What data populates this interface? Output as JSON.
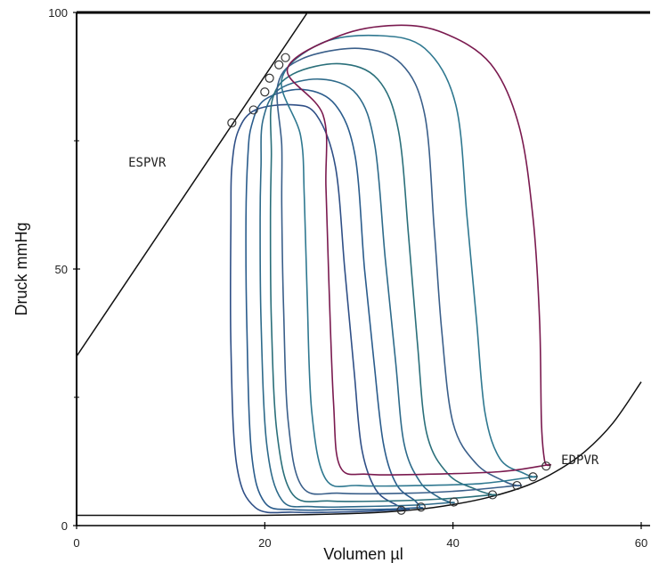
{
  "chart_data": {
    "type": "line",
    "xlabel": "Volumen µl",
    "ylabel": "Druck mmHg",
    "xlim": [
      0,
      60
    ],
    "ylim": [
      0,
      100
    ],
    "xticks": [
      {
        "v": 0,
        "label": "0"
      },
      {
        "v": 20,
        "label": "20"
      },
      {
        "v": 40,
        "label": "40"
      },
      {
        "v": 60,
        "label": "60"
      }
    ],
    "yticks": [
      {
        "v": 0,
        "label": "0"
      },
      {
        "v": 50,
        "label": "50"
      },
      {
        "v": 100,
        "label": "100"
      }
    ],
    "minor_yticks": [
      25,
      75
    ],
    "colors": {
      "axis": "#000000",
      "line": "#111111",
      "loops": [
        "#2f4f86",
        "#2a5c8c",
        "#2d6a8a",
        "#2a6f7a",
        "#3a5f8a",
        "#2f7890",
        "#7a1a4f"
      ],
      "marker": "#333333"
    },
    "annotations": [
      {
        "text": "ESPVR",
        "x": 5.5,
        "y": 70
      },
      {
        "text": "EDPVR",
        "x": 51.5,
        "y": 12
      }
    ],
    "espvr": {
      "x": [
        0,
        26
      ],
      "y": [
        33,
        104
      ]
    },
    "edpvr": {
      "x": [
        0,
        20,
        30,
        36,
        40,
        44,
        48,
        51,
        54,
        57,
        60
      ],
      "y": [
        2,
        2,
        2.4,
        3.1,
        4.1,
        5.6,
        7.9,
        10.6,
        14.4,
        20,
        28
      ]
    },
    "series": [
      {
        "points": [
          [
            35,
            3.2
          ],
          [
            31,
            2.8
          ],
          [
            27,
            2.6
          ],
          [
            23,
            2.6
          ],
          [
            19,
            3.5
          ],
          [
            17,
            12
          ],
          [
            16.4,
            35
          ],
          [
            16.4,
            60
          ],
          [
            16.5,
            70
          ],
          [
            17.2,
            77
          ],
          [
            19,
            81
          ],
          [
            23,
            82
          ],
          [
            25.5,
            80
          ],
          [
            27.5,
            70
          ],
          [
            28.5,
            50
          ],
          [
            29.5,
            30
          ],
          [
            30.3,
            15
          ],
          [
            31.8,
            7
          ],
          [
            34,
            4
          ],
          [
            35,
            3.2
          ]
        ]
      },
      {
        "points": [
          [
            36.5,
            3.5
          ],
          [
            33,
            3.2
          ],
          [
            28,
            3.1
          ],
          [
            23,
            3.1
          ],
          [
            20,
            4.5
          ],
          [
            18.6,
            14
          ],
          [
            18.1,
            38
          ],
          [
            18,
            60
          ],
          [
            18.2,
            72
          ],
          [
            18.6,
            78
          ],
          [
            20,
            83
          ],
          [
            24,
            85
          ],
          [
            27.5,
            82
          ],
          [
            29.6,
            72
          ],
          [
            30.6,
            50
          ],
          [
            31.6,
            32
          ],
          [
            32.6,
            16
          ],
          [
            34,
            8
          ],
          [
            36,
            4.8
          ],
          [
            36.5,
            3.5
          ]
        ]
      },
      {
        "points": [
          [
            39.8,
            4.5
          ],
          [
            36,
            4.0
          ],
          [
            30,
            3.7
          ],
          [
            25,
            3.7
          ],
          [
            21.8,
            5
          ],
          [
            20.2,
            16
          ],
          [
            19.6,
            40
          ],
          [
            19.5,
            60
          ],
          [
            19.6,
            70
          ],
          [
            19.8,
            79
          ],
          [
            21.5,
            85
          ],
          [
            26,
            87
          ],
          [
            29.8,
            84
          ],
          [
            31.7,
            74
          ],
          [
            32.8,
            52
          ],
          [
            33.9,
            32
          ],
          [
            34.8,
            16
          ],
          [
            36.5,
            8.5
          ],
          [
            38.5,
            5.5
          ],
          [
            39.8,
            4.5
          ]
        ]
      },
      {
        "points": [
          [
            44.2,
            6.0
          ],
          [
            39,
            5.2
          ],
          [
            33,
            4.8
          ],
          [
            27,
            4.8
          ],
          [
            23,
            6
          ],
          [
            21.3,
            18
          ],
          [
            20.7,
            40
          ],
          [
            20.6,
            60
          ],
          [
            20.7,
            72
          ],
          [
            20.8,
            83
          ],
          [
            23,
            88
          ],
          [
            28,
            90
          ],
          [
            32,
            87
          ],
          [
            34.2,
            77
          ],
          [
            35.3,
            56
          ],
          [
            36.2,
            36
          ],
          [
            37.2,
            18
          ],
          [
            39.5,
            10
          ],
          [
            42.5,
            7
          ],
          [
            44.2,
            6.0
          ]
        ]
      },
      {
        "points": [
          [
            46.8,
            7.8
          ],
          [
            41,
            6.8
          ],
          [
            35,
            6.3
          ],
          [
            28,
            6.3
          ],
          [
            24,
            7.5
          ],
          [
            22.5,
            20
          ],
          [
            22,
            42
          ],
          [
            21.8,
            62
          ],
          [
            21.8,
            74
          ],
          [
            21.4,
            86
          ],
          [
            24,
            91
          ],
          [
            30,
            93
          ],
          [
            34.5,
            90
          ],
          [
            37,
            80
          ],
          [
            38,
            58
          ],
          [
            38.8,
            38
          ],
          [
            40,
            20
          ],
          [
            42.5,
            12
          ],
          [
            45.5,
            8.6
          ],
          [
            46.8,
            7.8
          ]
        ]
      },
      {
        "points": [
          [
            48.5,
            9.5
          ],
          [
            43,
            8.2
          ],
          [
            36,
            7.8
          ],
          [
            30,
            7.8
          ],
          [
            26.5,
            9
          ],
          [
            25,
            22
          ],
          [
            24.5,
            45
          ],
          [
            24.2,
            64
          ],
          [
            23.8,
            76
          ],
          [
            21.8,
            87
          ],
          [
            26,
            94
          ],
          [
            32,
            95.5
          ],
          [
            37,
            93
          ],
          [
            40.3,
            82
          ],
          [
            41.5,
            60
          ],
          [
            42.5,
            40
          ],
          [
            43.4,
            22
          ],
          [
            45,
            13
          ],
          [
            47.5,
            10.2
          ],
          [
            48.5,
            9.5
          ]
        ]
      },
      {
        "points": [
          [
            50,
            11.8
          ],
          [
            45,
            10.5
          ],
          [
            37,
            10.0
          ],
          [
            31,
            10.0
          ],
          [
            28,
            11.5
          ],
          [
            27.3,
            24
          ],
          [
            26.8,
            48
          ],
          [
            26.5,
            66
          ],
          [
            26.2,
            80
          ],
          [
            22.4,
            89
          ],
          [
            28,
            95.5
          ],
          [
            34,
            97.5
          ],
          [
            39,
            96
          ],
          [
            44,
            90
          ],
          [
            47,
            78
          ],
          [
            48.5,
            60
          ],
          [
            49.2,
            40
          ],
          [
            49.4,
            20
          ],
          [
            49.7,
            13
          ],
          [
            50,
            11.8
          ]
        ]
      }
    ],
    "end_systolic_markers": [
      [
        16.5,
        78.5
      ],
      [
        18.8,
        81
      ],
      [
        20.0,
        84.5
      ],
      [
        20.5,
        87.2
      ],
      [
        21.5,
        89.8
      ],
      [
        22.2,
        91.2
      ]
    ],
    "end_diastolic_markers": [
      [
        34.5,
        3.0
      ],
      [
        36.6,
        3.6
      ],
      [
        40.1,
        4.6
      ],
      [
        44.2,
        6.0
      ],
      [
        46.8,
        7.8
      ],
      [
        48.5,
        9.5
      ],
      [
        49.9,
        11.6
      ]
    ]
  }
}
